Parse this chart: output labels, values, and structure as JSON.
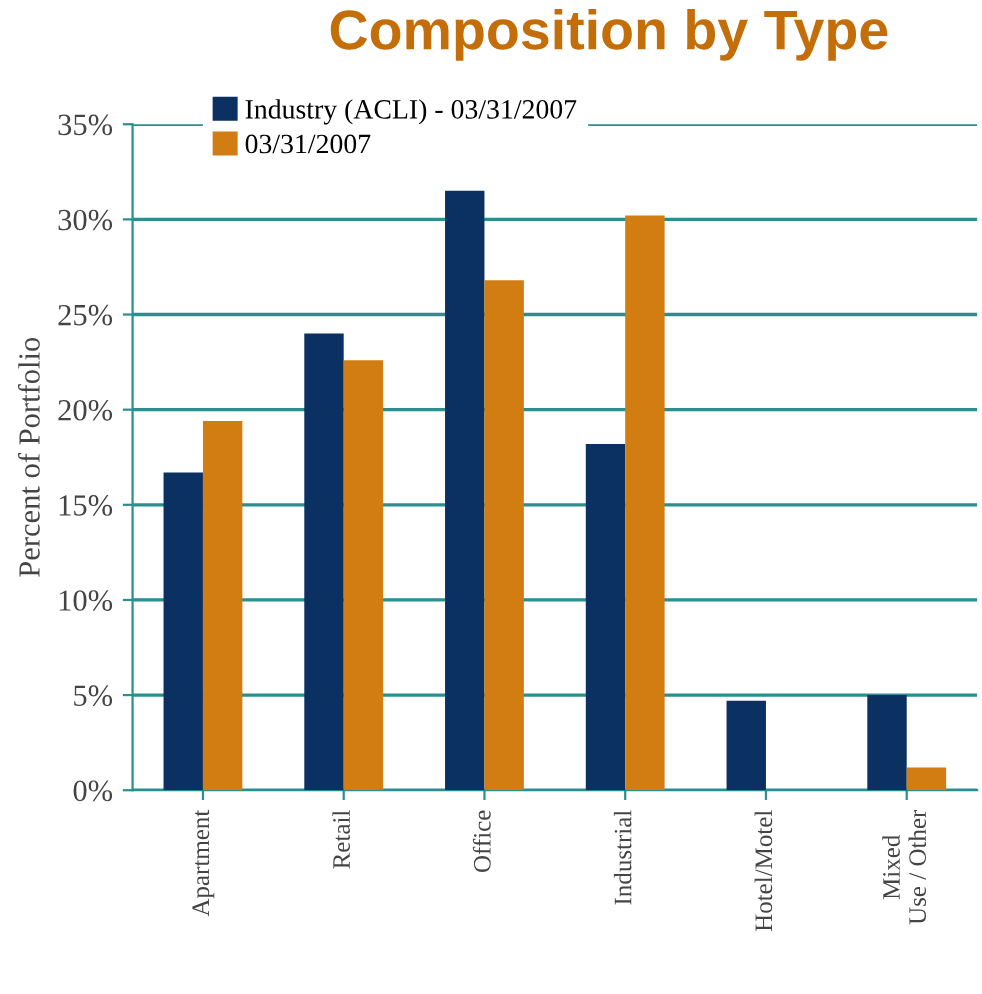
{
  "chart_data": {
    "type": "bar",
    "title": "Composition by Type",
    "ylabel": "Percent of Portfolio",
    "categories": [
      "Apartment",
      "Retail",
      "Office",
      "Industrial",
      "Hotel/Motel",
      "Mixed\nUse / Other"
    ],
    "series": [
      {
        "name": "Industry (ACLI) - 03/31/2007",
        "color": "#0b3162",
        "values": [
          16.7,
          24.0,
          31.5,
          18.2,
          4.7,
          5.0
        ]
      },
      {
        "name": "03/31/2007",
        "color": "#d17d12",
        "values": [
          19.4,
          22.6,
          26.8,
          30.2,
          0,
          1.2
        ]
      }
    ],
    "ylim": [
      0,
      35
    ],
    "yticks": [
      {
        "value": 0,
        "label": "0%"
      },
      {
        "value": 5,
        "label": "5%"
      },
      {
        "value": 10,
        "label": "10%"
      },
      {
        "value": 15,
        "label": "15%"
      },
      {
        "value": 20,
        "label": "20%"
      },
      {
        "value": 25,
        "label": "25%"
      },
      {
        "value": 30,
        "label": "30%"
      },
      {
        "value": 35,
        "label": "35%"
      }
    ],
    "grid": "y",
    "legend": "top left"
  }
}
